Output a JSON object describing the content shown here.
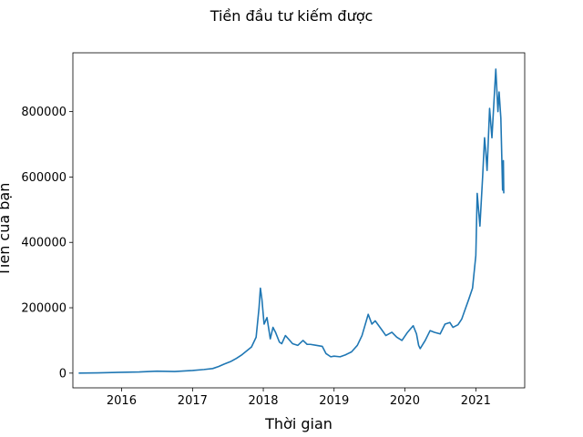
{
  "chart_data": {
    "type": "line",
    "title": "Tiền đầu tư kiếm được",
    "xlabel": "Thời gian",
    "ylabel": "Tiền của bạn",
    "xlim": [
      "2015-04-25",
      "2021-09-10"
    ],
    "ylim": [
      -45000,
      980000
    ],
    "x_ticks": [
      {
        "date": "2016-01-01",
        "label": "2016"
      },
      {
        "date": "2017-01-01",
        "label": "2017"
      },
      {
        "date": "2018-01-01",
        "label": "2018"
      },
      {
        "date": "2019-01-01",
        "label": "2019"
      },
      {
        "date": "2020-01-01",
        "label": "2020"
      },
      {
        "date": "2021-01-01",
        "label": "2021"
      }
    ],
    "y_ticks": [
      {
        "value": 0,
        "label": "0"
      },
      {
        "value": 200000,
        "label": "200000"
      },
      {
        "value": 400000,
        "label": "400000"
      },
      {
        "value": 600000,
        "label": "600000"
      },
      {
        "value": 800000,
        "label": "800000"
      }
    ],
    "grid": false,
    "series_color": "#1f77b4",
    "series": [
      {
        "x": [
          "2015-05-25",
          "2015-09-01",
          "2016-01-01",
          "2016-04-01",
          "2016-07-01",
          "2016-10-01",
          "2017-01-01",
          "2017-03-01",
          "2017-04-15",
          "2017-05-15",
          "2017-06-15",
          "2017-07-15",
          "2017-08-15",
          "2017-09-10",
          "2017-10-01",
          "2017-11-01",
          "2017-11-25",
          "2017-12-10",
          "2017-12-17",
          "2017-12-25",
          "2018-01-05",
          "2018-01-20",
          "2018-02-06",
          "2018-02-20",
          "2018-03-05",
          "2018-03-25",
          "2018-04-06",
          "2018-04-25",
          "2018-05-10",
          "2018-06-01",
          "2018-06-28",
          "2018-07-25",
          "2018-08-15",
          "2018-09-01",
          "2018-10-01",
          "2018-11-01",
          "2018-11-20",
          "2018-12-15",
          "2019-01-01",
          "2019-02-01",
          "2019-03-01",
          "2019-04-01",
          "2019-05-01",
          "2019-05-25",
          "2019-06-26",
          "2019-07-15",
          "2019-08-01",
          "2019-09-01",
          "2019-09-25",
          "2019-10-26",
          "2019-11-20",
          "2019-12-17",
          "2020-01-15",
          "2020-02-13",
          "2020-03-01",
          "2020-03-12",
          "2020-03-20",
          "2020-04-15",
          "2020-05-10",
          "2020-06-01",
          "2020-07-01",
          "2020-07-26",
          "2020-08-20",
          "2020-09-05",
          "2020-10-01",
          "2020-10-20",
          "2020-11-10",
          "2020-11-25",
          "2020-12-15",
          "2021-01-01",
          "2021-01-08",
          "2021-01-22",
          "2021-02-05",
          "2021-02-15",
          "2021-02-21",
          "2021-02-28",
          "2021-03-13",
          "2021-03-25",
          "2021-04-14",
          "2021-04-25",
          "2021-05-01",
          "2021-05-10",
          "2021-05-19",
          "2021-05-23",
          "2021-05-25"
        ],
        "y": [
          0,
          800,
          2500,
          3500,
          6000,
          5000,
          8000,
          11000,
          14000,
          20000,
          28000,
          35000,
          45000,
          55000,
          65000,
          80000,
          110000,
          200000,
          260000,
          225000,
          150000,
          170000,
          105000,
          140000,
          125000,
          95000,
          90000,
          115000,
          105000,
          90000,
          85000,
          100000,
          88000,
          88000,
          85000,
          82000,
          60000,
          50000,
          52000,
          50000,
          56000,
          65000,
          85000,
          115000,
          180000,
          150000,
          160000,
          135000,
          115000,
          125000,
          110000,
          100000,
          125000,
          145000,
          120000,
          85000,
          75000,
          100000,
          130000,
          125000,
          120000,
          150000,
          155000,
          140000,
          148000,
          165000,
          200000,
          225000,
          260000,
          360000,
          550000,
          450000,
          600000,
          720000,
          680000,
          620000,
          810000,
          720000,
          930000,
          800000,
          860000,
          780000,
          560000,
          650000,
          550000
        ]
      }
    ]
  }
}
